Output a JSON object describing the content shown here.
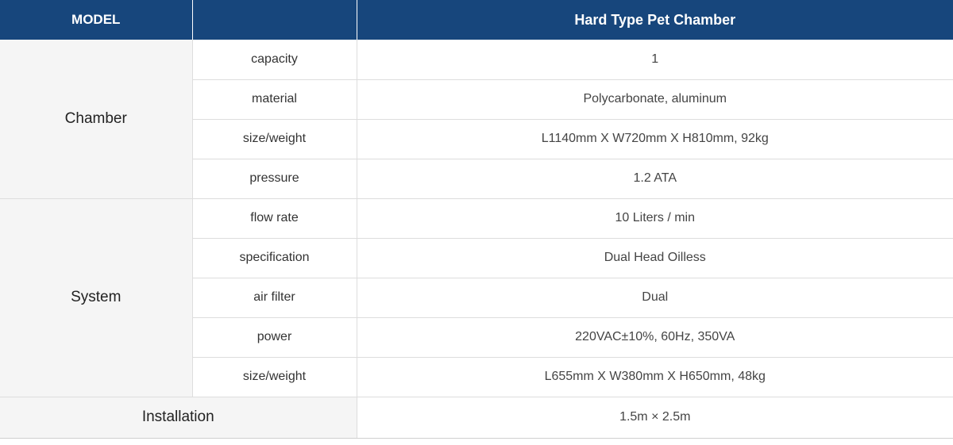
{
  "header": {
    "model_label": "MODEL",
    "empty_label": "",
    "product_name": "Hard Type Pet Chamber"
  },
  "groups": {
    "chamber": {
      "label": "Chamber",
      "rows": [
        {
          "spec": "capacity",
          "value": "1"
        },
        {
          "spec": "material",
          "value": "Polycarbonate, aluminum"
        },
        {
          "spec": "size/weight",
          "value": "L1140mm X W720mm X H810mm, 92kg"
        },
        {
          "spec": "pressure",
          "value": "1.2 ATA"
        }
      ]
    },
    "system": {
      "label": "System",
      "rows": [
        {
          "spec": "flow rate",
          "value": "10 Liters / min"
        },
        {
          "spec": "specification",
          "value": "Dual Head Oilless"
        },
        {
          "spec": "air filter",
          "value": "Dual"
        },
        {
          "spec": "power",
          "value": "220VAC±10%, 60Hz, 350VA"
        },
        {
          "spec": "size/weight",
          "value": "L655mm X W380mm X H650mm, 48kg"
        }
      ]
    },
    "installation": {
      "label": "Installation",
      "value": "1.5m × 2.5m"
    }
  }
}
